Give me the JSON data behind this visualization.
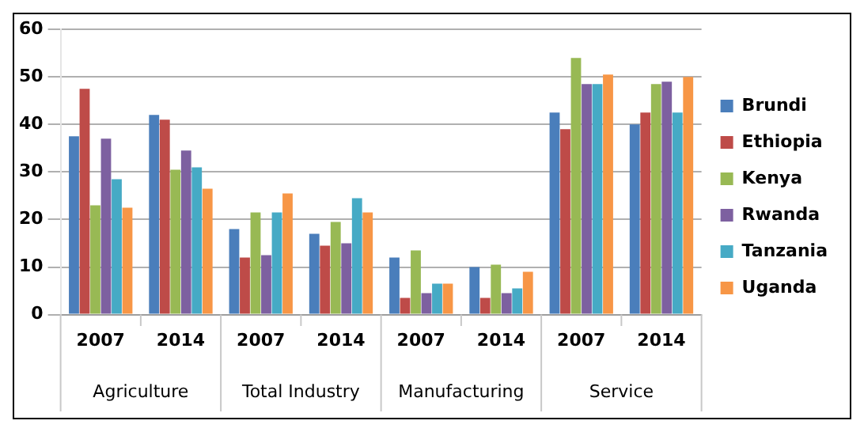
{
  "chart_data": {
    "type": "bar",
    "categories": [
      "2007",
      "2014",
      "2007",
      "2014",
      "2007",
      "2014",
      "2007",
      "2014"
    ],
    "annotations": [
      "Agriculture",
      "Total Industry",
      "Manufacturing",
      "Service"
    ],
    "series": [
      {
        "name": "Brundi",
        "color": "#4a7ebb",
        "values": [
          37.5,
          42,
          18,
          17,
          12,
          10,
          42.5,
          40
        ]
      },
      {
        "name": "Ethiopia",
        "color": "#be4b48",
        "values": [
          47.5,
          41,
          12,
          14.5,
          3.5,
          3.5,
          39,
          42.5
        ]
      },
      {
        "name": "Kenya",
        "color": "#98b954",
        "values": [
          23,
          30.5,
          21.5,
          19.5,
          13.5,
          10.5,
          54,
          48.5
        ]
      },
      {
        "name": "Rwanda",
        "color": "#7d60a0",
        "values": [
          37,
          34.5,
          12.5,
          15,
          4.5,
          4.5,
          48.5,
          49
        ]
      },
      {
        "name": "Tanzania",
        "color": "#46aac5",
        "values": [
          28.5,
          31,
          21.5,
          24.5,
          6.5,
          5.5,
          48.5,
          42.5
        ]
      },
      {
        "name": "Uganda",
        "color": "#f79646",
        "values": [
          22.5,
          26.5,
          25.5,
          21.5,
          6.5,
          9,
          50.5,
          50
        ]
      }
    ],
    "ylim": [
      0,
      60
    ],
    "yticks": [
      0,
      10,
      20,
      30,
      40,
      50,
      60
    ],
    "grid": "y",
    "legend": "right"
  }
}
